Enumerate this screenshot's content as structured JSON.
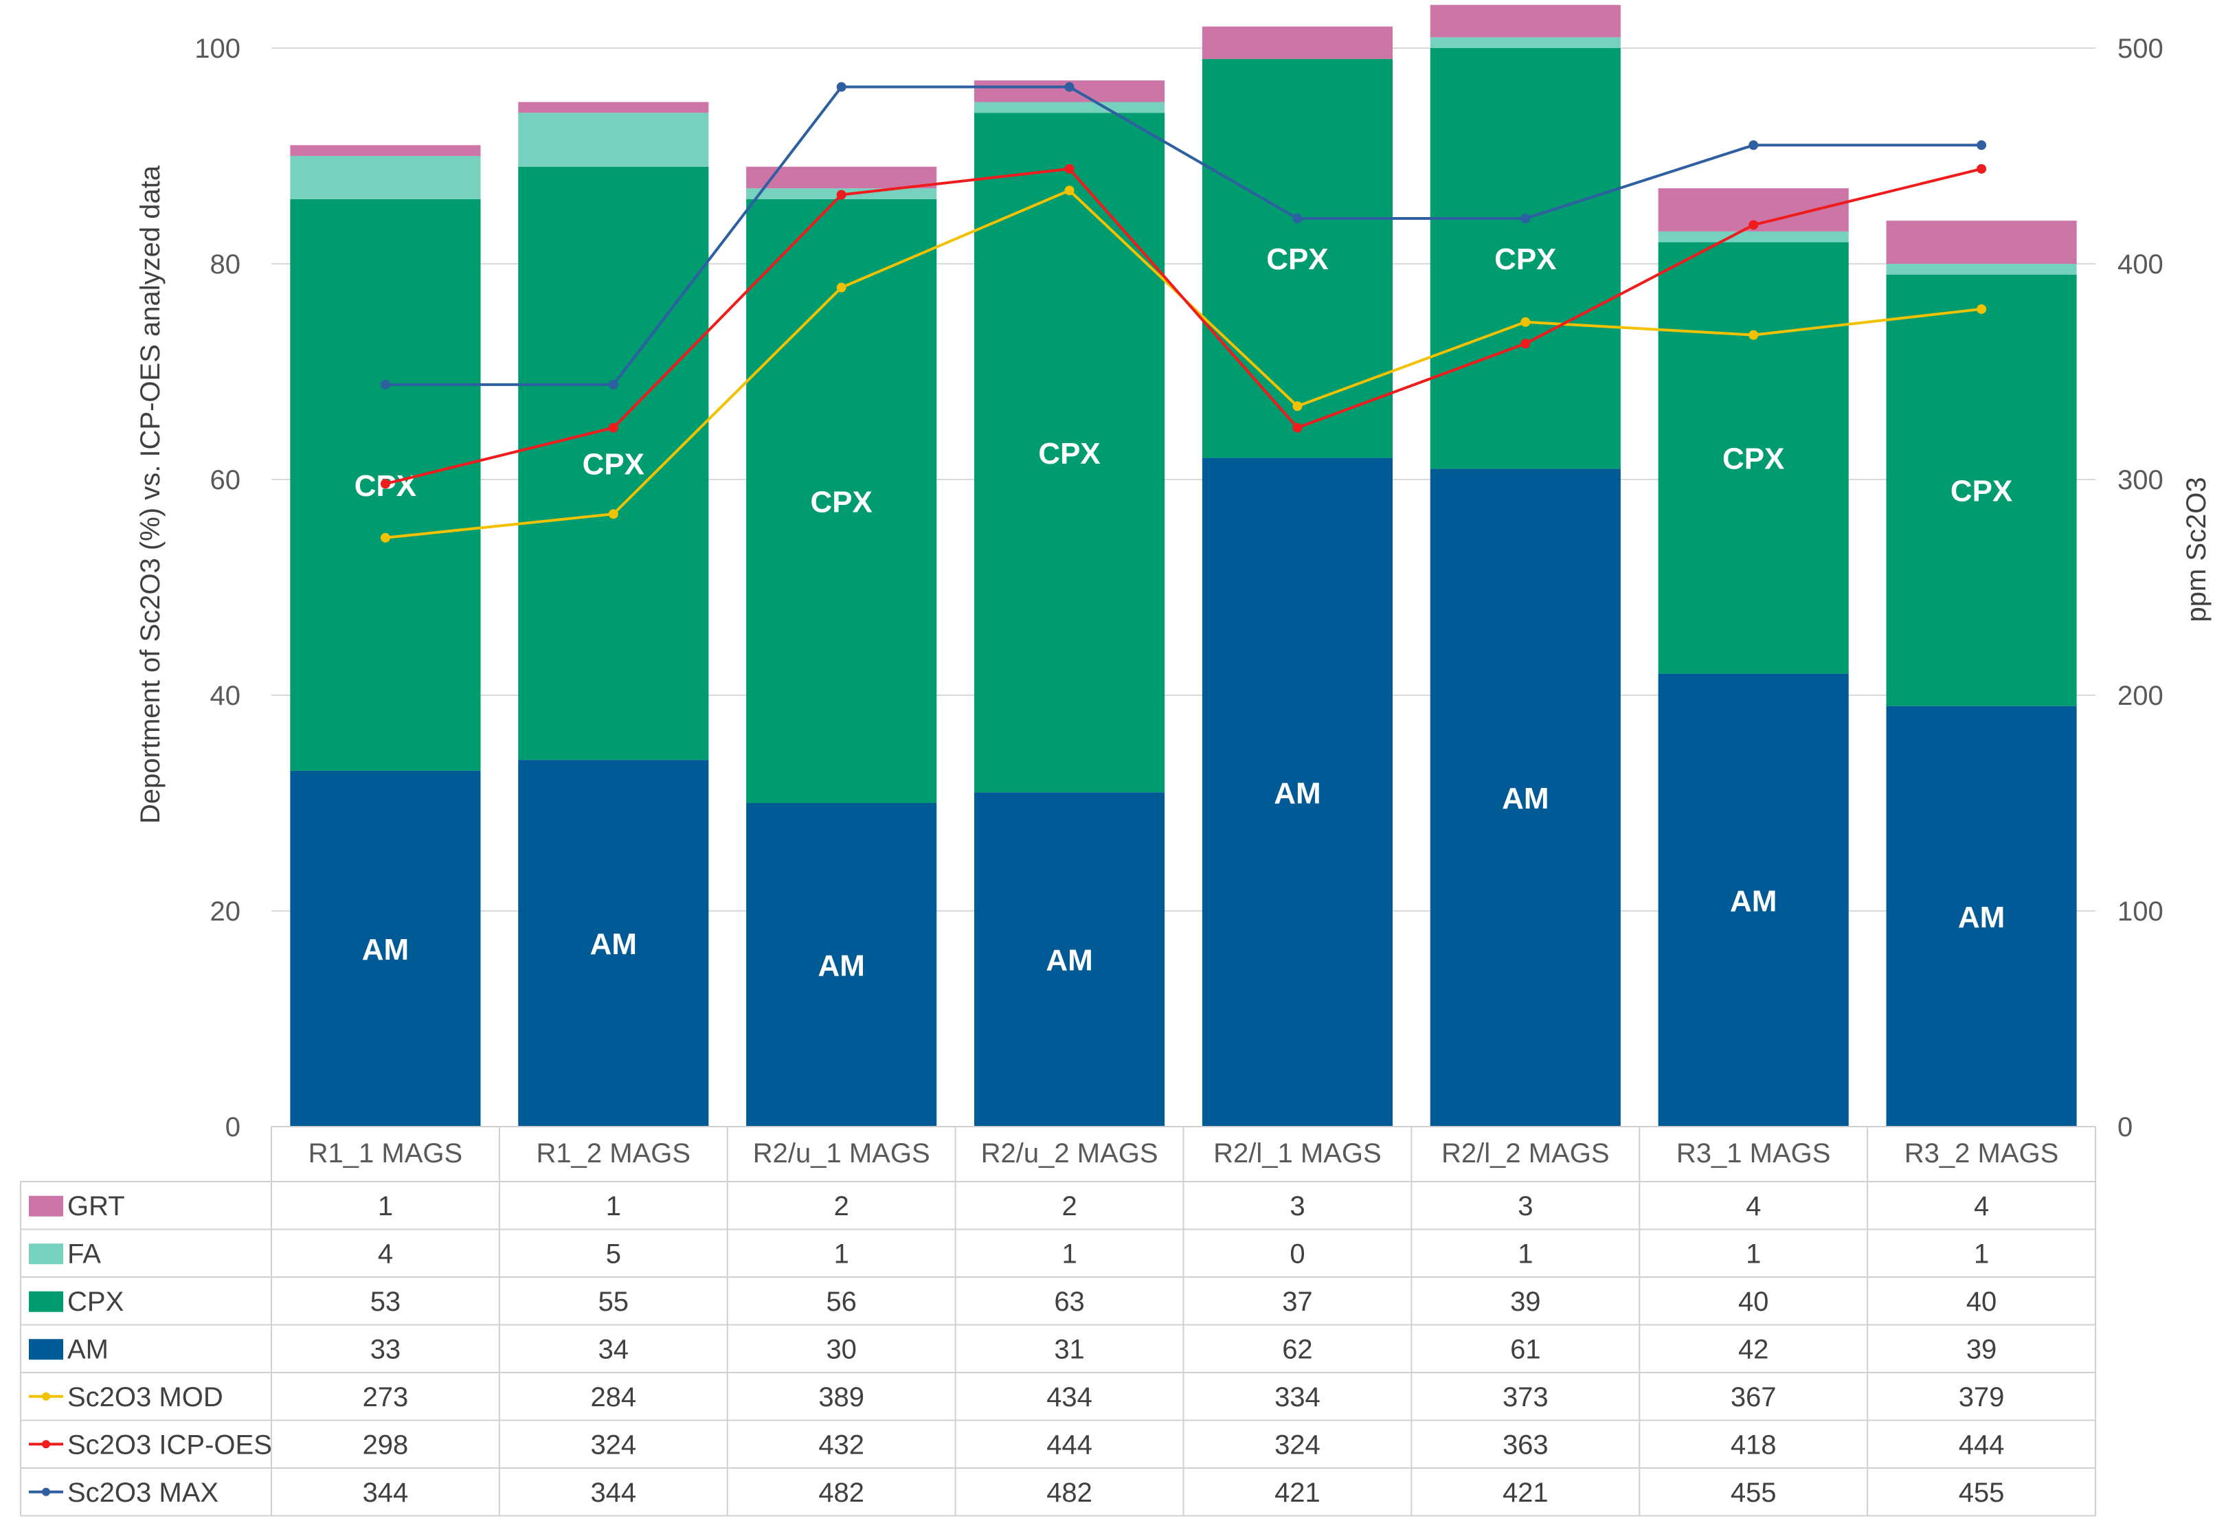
{
  "chart_data": {
    "type": "bar",
    "stacked": true,
    "categories": [
      "R1_1 MAGS",
      "R1_2 MAGS",
      "R2/u_1 MAGS",
      "R2/u_2 MAGS",
      "R2/l_1 MAGS",
      "R2/l_2 MAGS",
      "R3_1 MAGS",
      "R3_2 MAGS"
    ],
    "ylabel": "Deportment of Sc2O3 (%) vs. ICP-OES analyzed data",
    "y2label": "ppm Sc2O3",
    "ylim": [
      0,
      100
    ],
    "y2lim": [
      0,
      500
    ],
    "yticks": [
      "0",
      "20",
      "40",
      "60",
      "80",
      "100"
    ],
    "y2ticks": [
      "0",
      "100",
      "200",
      "300",
      "400",
      "500"
    ],
    "bar_series": [
      {
        "name": "AM",
        "label": "AM",
        "color": "#005A96",
        "values": [
          33,
          34,
          30,
          31,
          62,
          61,
          42,
          39
        ],
        "label_on_bar": true
      },
      {
        "name": "CPX",
        "label": "CPX",
        "color": "#009B6E",
        "values": [
          53,
          55,
          56,
          63,
          37,
          39,
          40,
          40
        ],
        "label_on_bar": true
      },
      {
        "name": "FA",
        "label": "FA",
        "color": "#76D2BE",
        "values": [
          4,
          5,
          1,
          1,
          0,
          1,
          1,
          1
        ],
        "label_on_bar": false
      },
      {
        "name": "GRT",
        "label": "GRT",
        "color": "#CE75A8",
        "values": [
          1,
          1,
          2,
          2,
          3,
          3,
          4,
          4
        ],
        "label_on_bar": false
      }
    ],
    "line_series": [
      {
        "name": "Sc2O3 MOD",
        "label": "Sc2O3 MOD",
        "color": "#F2C200",
        "values": [
          273,
          284,
          389,
          434,
          334,
          373,
          367,
          379
        ]
      },
      {
        "name": "Sc2O3 ICP-OES",
        "label": "Sc2O3 ICP-OES",
        "color": "#EE1C1C",
        "values": [
          298,
          324,
          432,
          444,
          324,
          363,
          418,
          444
        ]
      },
      {
        "name": "Sc2O3 MAX",
        "label": "Sc2O3 MAX",
        "color": "#2E5FA0",
        "values": [
          344,
          344,
          482,
          482,
          421,
          421,
          455,
          455
        ]
      }
    ],
    "table_rows": [
      "GRT",
      "FA",
      "CPX",
      "AM",
      "Sc2O3 MOD",
      "Sc2O3 ICP-OES",
      "Sc2O3 MAX"
    ],
    "gridlines": true,
    "legend": "data-table"
  }
}
